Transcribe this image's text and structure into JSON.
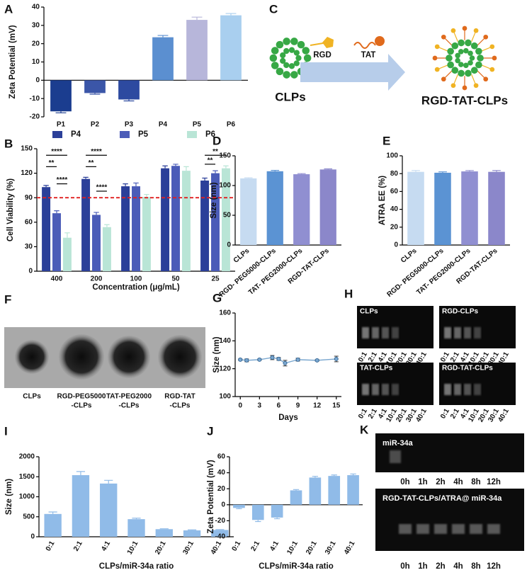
{
  "chart_data": [
    {
      "panel": "A",
      "type": "bar",
      "y_label": "Zeta Potential (mV)",
      "categories": [
        "P1",
        "P2",
        "P3",
        "P4",
        "P5",
        "P6"
      ],
      "values": [
        -17,
        -7,
        -10.5,
        23.5,
        33,
        35.5
      ],
      "errors": [
        0.8,
        0.6,
        0.8,
        1,
        1.5,
        1
      ],
      "colors": [
        "#1b3d8f",
        "#3b56a8",
        "#2d4aa0",
        "#5b8fd0",
        "#b7b6da",
        "#a9cfef"
      ],
      "ylim": [
        -20,
        40
      ],
      "yticks": [
        -20,
        -10,
        0,
        10,
        20,
        30,
        40
      ]
    },
    {
      "panel": "B",
      "type": "grouped_bar",
      "x_label": "Concentration (μg/mL)",
      "y_label": "Cell Viability (%)",
      "categories": [
        "400",
        "200",
        "100",
        "50",
        "25"
      ],
      "series": [
        {
          "name": "P4",
          "color": "#2b3f99",
          "values": [
            103,
            113,
            104,
            126,
            111
          ],
          "errors": [
            2,
            2,
            3,
            3,
            3
          ]
        },
        {
          "name": "P5",
          "color": "#4b5cb8",
          "values": [
            71,
            69,
            104,
            129,
            120
          ],
          "errors": [
            3,
            3,
            4,
            2,
            3
          ]
        },
        {
          "name": "P6",
          "color": "#b9e5d6",
          "values": [
            41,
            54,
            91,
            123,
            126
          ],
          "errors": [
            6,
            3,
            3,
            5,
            3
          ]
        }
      ],
      "legend": "top",
      "ylim": [
        0,
        150
      ],
      "yticks": [
        0,
        30,
        60,
        90,
        120,
        150
      ],
      "reference_line": {
        "value": 90,
        "color": "#e02020"
      },
      "annotations": [
        "****",
        "**",
        "****",
        "****",
        "**",
        "****",
        "**",
        "**"
      ]
    },
    {
      "panel": "D",
      "type": "bar",
      "y_label": "Size (nm)",
      "categories": [
        "CLPs",
        "RGD- PEG5000-CLPs",
        "TAT- PEG2000-CLPs",
        "RGD-TAT-CLPs"
      ],
      "values": [
        112,
        124,
        119,
        127
      ],
      "errors": [
        1,
        1.5,
        1,
        1
      ],
      "colors": [
        "#c6dbf1",
        "#5b93d3",
        "#908fd1",
        "#8b87ca"
      ],
      "ylim": [
        0,
        150
      ],
      "yticks": [
        0,
        50,
        100,
        150
      ]
    },
    {
      "panel": "E",
      "type": "bar",
      "y_label": "ATRA EE (%)",
      "categories": [
        "CLPs",
        "RGD- PEG5000-CLPs",
        "TAT- PEG2000-CLPs",
        "RGD-TAT-CLPs"
      ],
      "values": [
        82,
        81,
        82.5,
        82
      ],
      "errors": [
        1.5,
        1,
        1,
        1.5
      ],
      "colors": [
        "#c6dbf1",
        "#5b93d3",
        "#908fd1",
        "#8b87ca"
      ],
      "ylim": [
        0,
        100
      ],
      "yticks": [
        0,
        20,
        40,
        60,
        80,
        100
      ]
    },
    {
      "panel": "G",
      "type": "line",
      "x_label": "Days",
      "y_label": "Size (nm)",
      "x": [
        0,
        1,
        3,
        5,
        6,
        7,
        9,
        12,
        15
      ],
      "values": [
        126.5,
        126,
        126.5,
        128,
        127,
        124,
        126.5,
        126,
        127
      ],
      "errors": [
        0.5,
        1,
        0.5,
        1.5,
        1,
        2,
        1,
        0.5,
        2
      ],
      "color": "#7aa7cf",
      "xlim": [
        -0.8,
        15.8
      ],
      "xticks": [
        0,
        3,
        6,
        9,
        12,
        15
      ],
      "ylim": [
        100,
        160
      ],
      "yticks": [
        100,
        120,
        140,
        160
      ]
    },
    {
      "panel": "I",
      "type": "bar",
      "x_label": "CLPs/miR-34a ratio",
      "y_label": "Size (nm)",
      "categories": [
        "0:1",
        "2:1",
        "4:1",
        "10:1",
        "20:1",
        "30:1",
        "40:1"
      ],
      "values": [
        570,
        1540,
        1330,
        440,
        190,
        160,
        170
      ],
      "errors": [
        50,
        90,
        80,
        25,
        10,
        12,
        10
      ],
      "color": "#90bbe8",
      "ylim": [
        0,
        2000
      ],
      "yticks": [
        0,
        500,
        1000,
        1500,
        2000
      ]
    },
    {
      "panel": "J",
      "type": "bar",
      "x_label": "CLPs/miR-34a ratio",
      "y_label": "Zeta Potential (mV)",
      "categories": [
        "0:1",
        "2:1",
        "4:1",
        "10:1",
        "20:1",
        "30:1",
        "40:1"
      ],
      "values": [
        -4,
        -19,
        -16,
        18,
        34,
        36,
        37
      ],
      "errors": [
        1,
        2,
        1.5,
        1,
        1.5,
        1.2,
        1.5
      ],
      "color": "#90bbe8",
      "ylim": [
        -40,
        60
      ],
      "yticks": [
        -40,
        -20,
        0,
        20,
        40,
        60
      ]
    }
  ],
  "diagram_c": {
    "panel": "C",
    "left_label": "CLPs",
    "ligands": [
      "RGD",
      "TAT"
    ],
    "right_label": "RGD-TAT-CLPs"
  },
  "images_f": {
    "panel": "F",
    "labels": [
      [
        "CLPs"
      ],
      [
        "RGD-PEG5000",
        "-CLPs"
      ],
      [
        "TAT-PEG2000",
        "-CLPs"
      ],
      [
        "RGD-TAT",
        "-CLPs"
      ]
    ]
  },
  "gels_h": {
    "panel": "H",
    "gels": [
      "CLPs",
      "RGD-CLPs",
      "TAT-CLPs",
      "RGD-TAT-CLPs"
    ],
    "lanes": [
      "0:1",
      "2:1",
      "4:1",
      "10:1",
      "20:1",
      "30:1",
      "40:1"
    ]
  },
  "gels_k": {
    "panel": "K",
    "top_label": "miR-34a",
    "bottom_label": "RGD-TAT-CLPs/ATRA@ miR-34a",
    "times": [
      "0h",
      "1h",
      "2h",
      "4h",
      "8h",
      "12h"
    ]
  }
}
